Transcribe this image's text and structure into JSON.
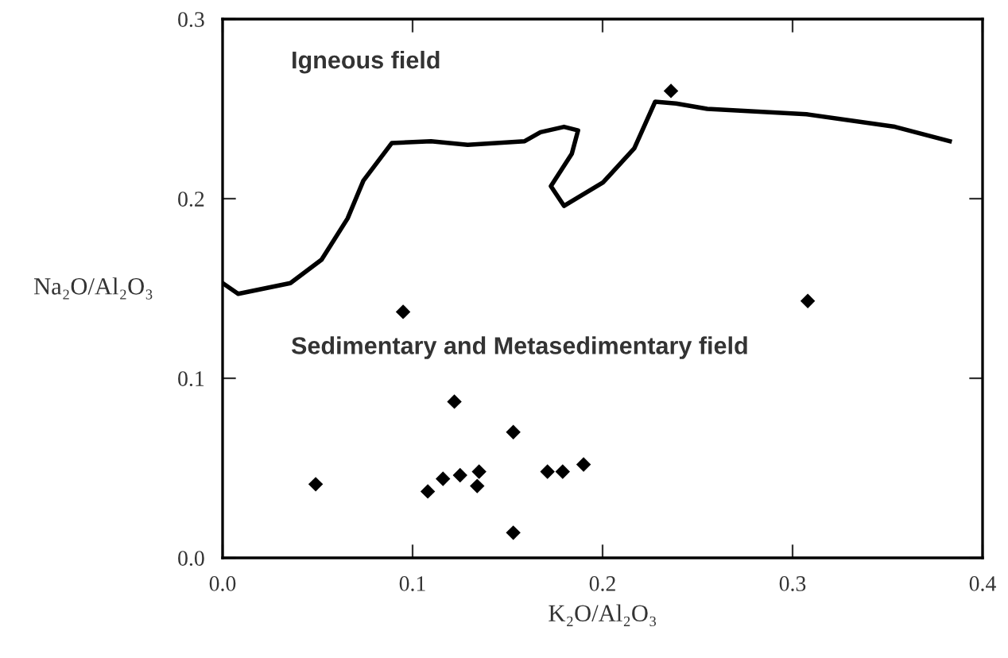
{
  "chart_data": {
    "type": "scatter",
    "xlabel": "K₂O/Al₂O₃",
    "ylabel": "Na₂O/Al₂O₃",
    "annotations": [
      "Igneous field",
      "Sedimentary and Metasedimentary field"
    ],
    "xlim": [
      0,
      0.4
    ],
    "ylim": [
      0,
      0.3
    ],
    "xticks": [
      {
        "value": 0,
        "label": "0.0"
      },
      0.1,
      0.2,
      0.3,
      0.4
    ],
    "yticks": [
      {
        "value": 0,
        "label": "0.0"
      },
      0.1,
      0.2,
      0.3
    ],
    "grid": false,
    "legend": false,
    "series": [
      {
        "type": "line",
        "color": "#000000",
        "marker": "none",
        "line_style": "solid",
        "x": [
          0.0,
          0.0082,
          0.0357,
          0.0521,
          0.0658,
          0.0741,
          0.0891,
          0.1097,
          0.129,
          0.159,
          0.1673,
          0.1797,
          0.1871,
          0.1838,
          0.1728,
          0.1797,
          0.2002,
          0.2167,
          0.2277,
          0.2387,
          0.2551,
          0.3073,
          0.3539,
          0.3827
        ],
        "values": [
          0.153,
          0.147,
          0.153,
          0.166,
          0.189,
          0.21,
          0.231,
          0.232,
          0.23,
          0.232,
          0.237,
          0.24,
          0.238,
          0.225,
          0.207,
          0.196,
          0.209,
          0.228,
          0.254,
          0.253,
          0.25,
          0.247,
          0.24,
          0.232
        ]
      },
      {
        "color": "#000000",
        "marker": "diamond",
        "x": [
          0.095,
          0.308,
          0.122,
          0.153,
          0.049,
          0.108,
          0.116,
          0.125,
          0.135,
          0.134,
          0.171,
          0.179,
          0.19,
          0.153,
          0.236
        ],
        "values": [
          0.137,
          0.143,
          0.087,
          0.07,
          0.041,
          0.037,
          0.044,
          0.046,
          0.048,
          0.04,
          0.048,
          0.048,
          0.052,
          0.014,
          0.26
        ]
      }
    ]
  }
}
